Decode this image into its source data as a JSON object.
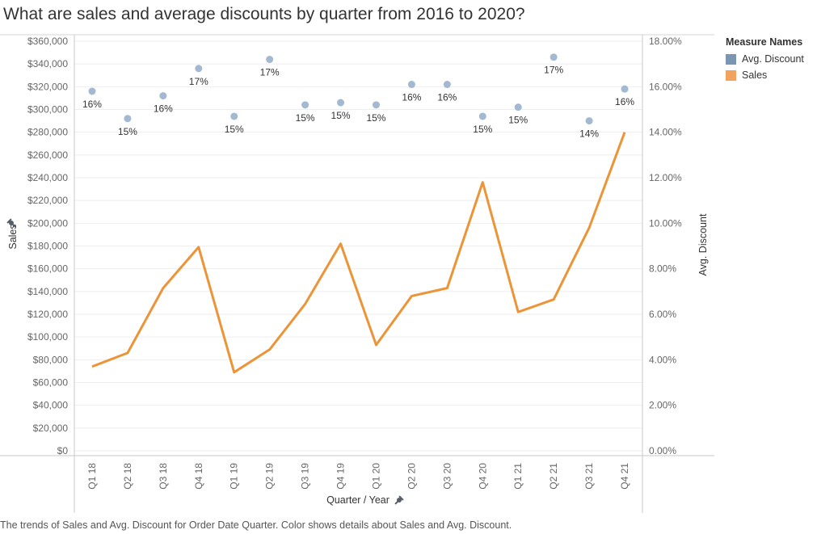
{
  "title": "What are sales and average discounts by quarter from 2016 to 2020?",
  "caption": "The trends of Sales and Avg. Discount for Order Date Quarter.  Color shows details about Sales and Avg. Discount.",
  "legend": {
    "title": "Measure Names",
    "items": [
      {
        "label": "Avg. Discount",
        "color": "#7b96b3"
      },
      {
        "label": "Sales",
        "color": "#f2a35e"
      }
    ]
  },
  "colors": {
    "sales_line": "#ec9438",
    "discount_dot": "#a3b8d1"
  },
  "icons": {
    "pin": "pin-icon"
  },
  "chart_data": {
    "type": "line",
    "xlabel": "Quarter / Year",
    "ylabel": "Sales",
    "y2label": "Avg. Discount",
    "categories": [
      "Q1 18",
      "Q2 18",
      "Q3 18",
      "Q4 18",
      "Q1 19",
      "Q2 19",
      "Q3 19",
      "Q4 19",
      "Q1 20",
      "Q2 20",
      "Q3 20",
      "Q4 20",
      "Q1 21",
      "Q2 21",
      "Q3 21",
      "Q4 21"
    ],
    "ylim": [
      0,
      360000
    ],
    "y2lim": [
      0,
      0.18
    ],
    "yticks": [
      "$0",
      "$20,000",
      "$40,000",
      "$60,000",
      "$80,000",
      "$100,000",
      "$120,000",
      "$140,000",
      "$160,000",
      "$180,000",
      "$200,000",
      "$220,000",
      "$240,000",
      "$260,000",
      "$280,000",
      "$300,000",
      "$320,000",
      "$340,000",
      "$360,000"
    ],
    "y2ticks": [
      "0.00%",
      "2.00%",
      "4.00%",
      "6.00%",
      "8.00%",
      "10.00%",
      "12.00%",
      "14.00%",
      "16.00%",
      "18.00%"
    ],
    "grid": true,
    "legend_position": "right",
    "series": [
      {
        "name": "Sales",
        "axis": "left",
        "mark": "line",
        "values": [
          74000,
          86000,
          143000,
          179000,
          69000,
          89000,
          129000,
          182000,
          93000,
          136000,
          143000,
          236000,
          122000,
          133000,
          196000,
          280000
        ]
      },
      {
        "name": "Avg. Discount",
        "axis": "right",
        "mark": "circle",
        "values": [
          0.158,
          0.146,
          0.156,
          0.168,
          0.147,
          0.172,
          0.152,
          0.153,
          0.152,
          0.161,
          0.161,
          0.147,
          0.151,
          0.173,
          0.145,
          0.159
        ],
        "labels": [
          "16%",
          "15%",
          "16%",
          "17%",
          "15%",
          "17%",
          "15%",
          "15%",
          "15%",
          "16%",
          "16%",
          "15%",
          "15%",
          "17%",
          "14%",
          "16%"
        ],
        "label_position": [
          "below",
          "below",
          "below",
          "above",
          "below",
          "above",
          "below",
          "below",
          "below",
          "below",
          "below",
          "below",
          "below",
          "below",
          "below",
          "below"
        ]
      }
    ]
  }
}
